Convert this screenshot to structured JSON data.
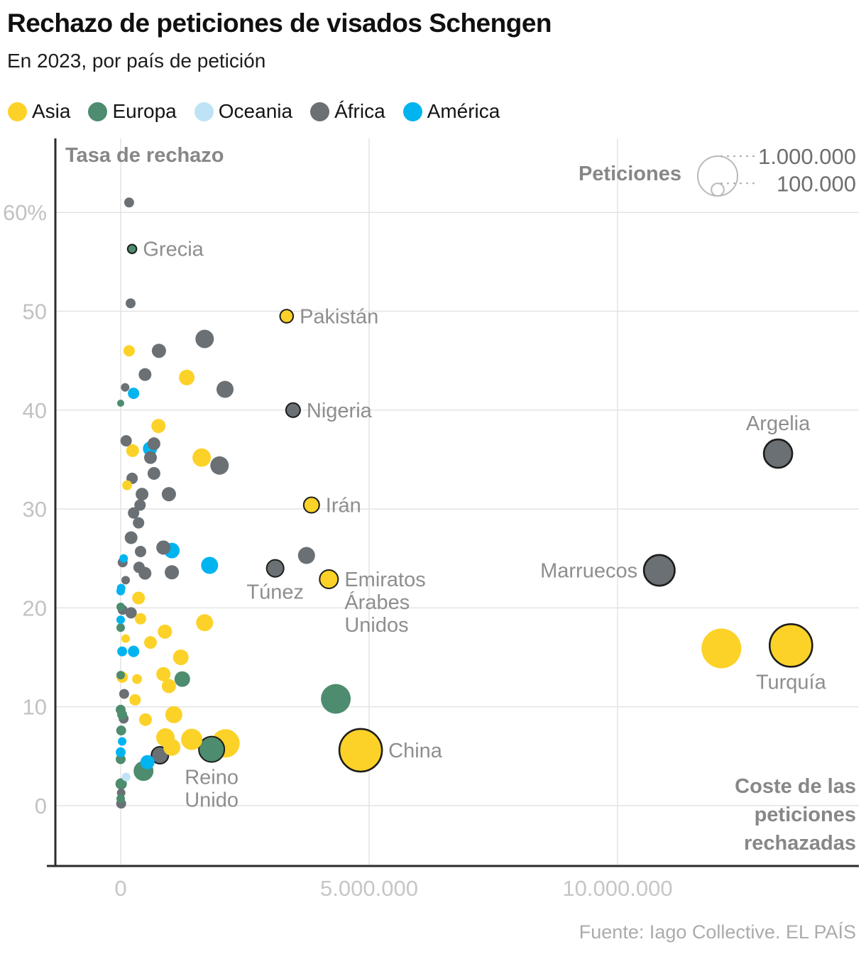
{
  "header": {
    "title": "Rechazo de peticiones de visados Schengen",
    "subtitle": "En 2023, por país de petición"
  },
  "legend": {
    "items": [
      {
        "label": "Asia",
        "color": "#FCD228"
      },
      {
        "label": "Europa",
        "color": "#4D8C6E"
      },
      {
        "label": "Oceania",
        "color": "#BEE3F6"
      },
      {
        "label": "África",
        "color": "#6A7074"
      },
      {
        "label": "América",
        "color": "#00B4F0"
      }
    ]
  },
  "footer": {
    "source": "Fuente: Iago Collective. EL PAÍS"
  },
  "chart_data": {
    "type": "scatter",
    "title": "Rechazo de peticiones de visados Schengen",
    "subtitle": "En 2023, por país de petición",
    "y_axis_title": "Tasa de rechazo",
    "x_axis_title_lines": [
      "Coste de las",
      "peticiones",
      "rechazadas"
    ],
    "x_axis_title": "Coste de las peticiones rechazadas",
    "xlim": [
      -1300000,
      14860000
    ],
    "ylim": [
      -6,
      67
    ],
    "grid": true,
    "x_ticks": [
      {
        "value": 0,
        "label": "0"
      },
      {
        "value": 5000000,
        "label": "5.000.000"
      },
      {
        "value": 10000000,
        "label": "10.000.000"
      }
    ],
    "y_ticks": [
      {
        "value": 0,
        "label": "0"
      },
      {
        "value": 10,
        "label": "10"
      },
      {
        "value": 20,
        "label": "20"
      },
      {
        "value": 30,
        "label": "30"
      },
      {
        "value": 40,
        "label": "40"
      },
      {
        "value": 50,
        "label": "50"
      },
      {
        "value": 60,
        "label": "60%"
      }
    ],
    "size_legend": {
      "title": "Peticiones",
      "entries": [
        {
          "label": "1.000.000",
          "value": 1000000
        },
        {
          "label": "100.000",
          "value": 100000
        }
      ]
    },
    "continents": {
      "Asia": "#FCD228",
      "Europa": "#4D8C6E",
      "Oceania": "#BEE3F6",
      "África": "#6A7074",
      "América": "#00B4F0"
    },
    "points_columns": [
      "label",
      "continent",
      "cost_eur",
      "rate_pct",
      "peticiones",
      "outlined",
      "label_side",
      "label_lines"
    ],
    "points": [
      [
        "Grecia",
        "Europa",
        230000,
        56.3,
        50000,
        true,
        "right",
        null
      ],
      [
        "Pakistán",
        "Asia",
        3340000,
        49.5,
        110000,
        true,
        "right",
        null
      ],
      [
        "Nigeria",
        "África",
        3470000,
        40.0,
        128000,
        true,
        "right",
        null
      ],
      [
        "Irán",
        "Asia",
        3840000,
        30.4,
        154000,
        true,
        "right",
        null
      ],
      [
        "Túnez",
        "África",
        3110000,
        24.0,
        184000,
        true,
        "below",
        null
      ],
      [
        "Emiratos Árabes Unidos",
        "Asia",
        4190000,
        22.9,
        216000,
        true,
        "right",
        [
          "Emiratos",
          "Árabes",
          "Unidos"
        ]
      ],
      [
        "Argelia",
        "África",
        13230000,
        35.6,
        510000,
        true,
        "above",
        null
      ],
      [
        "Marruecos",
        "África",
        10840000,
        23.8,
        600000,
        true,
        "left",
        null
      ],
      [
        "Turquía",
        "Asia",
        13490000,
        16.2,
        1150000,
        true,
        "below",
        null
      ],
      [
        "China",
        "Asia",
        4830000,
        5.6,
        1150000,
        true,
        "right",
        null
      ],
      [
        "Reino Unido",
        "Europa",
        1830000,
        5.7,
        413000,
        true,
        "below",
        [
          "Reino",
          "Unido"
        ]
      ],
      [
        null,
        "África",
        170000,
        61.0,
        62000,
        false,
        null,
        null
      ],
      [
        null,
        "África",
        200000,
        50.8,
        62000,
        false,
        null,
        null
      ],
      [
        null,
        "África",
        770000,
        46.0,
        128000,
        false,
        null,
        null
      ],
      [
        null,
        "África",
        1690000,
        47.2,
        215000,
        false,
        null,
        null
      ],
      [
        null,
        "África",
        490000,
        43.6,
        103000,
        false,
        null,
        null
      ],
      [
        null,
        "África",
        2100000,
        42.1,
        184000,
        false,
        null,
        null
      ],
      [
        null,
        "África",
        90000,
        42.3,
        46000,
        false,
        null,
        null
      ],
      [
        null,
        "África",
        110000,
        36.9,
        82000,
        false,
        null,
        null
      ],
      [
        null,
        "África",
        670000,
        36.6,
        103000,
        false,
        null,
        null
      ],
      [
        null,
        "África",
        600000,
        35.2,
        103000,
        false,
        null,
        null
      ],
      [
        null,
        "África",
        1990000,
        34.4,
        215000,
        false,
        null,
        null
      ],
      [
        null,
        "África",
        670000,
        33.6,
        103000,
        false,
        null,
        null
      ],
      [
        null,
        "África",
        230000,
        33.1,
        82000,
        false,
        null,
        null
      ],
      [
        null,
        "África",
        430000,
        31.5,
        103000,
        false,
        null,
        null
      ],
      [
        null,
        "África",
        970000,
        31.5,
        128000,
        false,
        null,
        null
      ],
      [
        null,
        "África",
        390000,
        30.4,
        82000,
        false,
        null,
        null
      ],
      [
        null,
        "África",
        260000,
        29.6,
        82000,
        false,
        null,
        null
      ],
      [
        null,
        "África",
        360000,
        28.6,
        82000,
        false,
        null,
        null
      ],
      [
        null,
        "África",
        210000,
        27.1,
        103000,
        false,
        null,
        null
      ],
      [
        null,
        "África",
        860000,
        26.1,
        128000,
        false,
        null,
        null
      ],
      [
        null,
        "África",
        400000,
        25.7,
        82000,
        false,
        null,
        null
      ],
      [
        null,
        "África",
        40000,
        24.6,
        62000,
        false,
        null,
        null
      ],
      [
        null,
        "África",
        370000,
        24.1,
        82000,
        false,
        null,
        null
      ],
      [
        null,
        "África",
        490000,
        23.5,
        103000,
        false,
        null,
        null
      ],
      [
        null,
        "África",
        1030000,
        23.6,
        128000,
        false,
        null,
        null
      ],
      [
        null,
        "África",
        3740000,
        25.3,
        184000,
        false,
        null,
        null
      ],
      [
        null,
        "África",
        100000,
        22.8,
        46000,
        false,
        null,
        null
      ],
      [
        null,
        "África",
        40000,
        19.8,
        62000,
        false,
        null,
        null
      ],
      [
        null,
        "África",
        210000,
        19.5,
        82000,
        false,
        null,
        null
      ],
      [
        null,
        "África",
        70000,
        11.3,
        62000,
        false,
        null,
        null
      ],
      [
        null,
        "África",
        60000,
        8.8,
        62000,
        false,
        null,
        null
      ],
      [
        null,
        "África",
        790000,
        5.1,
        184000,
        true,
        null,
        null
      ],
      [
        null,
        "África",
        10000,
        1.3,
        46000,
        false,
        null,
        null
      ],
      [
        null,
        "África",
        10000,
        0.2,
        62000,
        false,
        null,
        null
      ],
      [
        null,
        "Asia",
        170000,
        46.0,
        82000,
        false,
        null,
        null
      ],
      [
        null,
        "Asia",
        1330000,
        43.3,
        154000,
        false,
        null,
        null
      ],
      [
        null,
        "Asia",
        760000,
        38.4,
        128000,
        false,
        null,
        null
      ],
      [
        null,
        "Asia",
        240000,
        35.9,
        103000,
        false,
        null,
        null
      ],
      [
        null,
        "Asia",
        1630000,
        35.2,
        215000,
        false,
        null,
        null
      ],
      [
        null,
        "Asia",
        130000,
        32.4,
        62000,
        false,
        null,
        null
      ],
      [
        null,
        "Asia",
        360000,
        21.0,
        103000,
        false,
        null,
        null
      ],
      [
        null,
        "Asia",
        400000,
        18.9,
        82000,
        false,
        null,
        null
      ],
      [
        null,
        "Asia",
        1690000,
        18.5,
        184000,
        false,
        null,
        null
      ],
      [
        null,
        "Asia",
        890000,
        17.6,
        128000,
        false,
        null,
        null
      ],
      [
        null,
        "Asia",
        600000,
        16.5,
        103000,
        false,
        null,
        null
      ],
      [
        null,
        "Asia",
        100000,
        16.9,
        46000,
        false,
        null,
        null
      ],
      [
        null,
        "Asia",
        1210000,
        15.0,
        154000,
        false,
        null,
        null
      ],
      [
        null,
        "Asia",
        860000,
        13.3,
        128000,
        false,
        null,
        null
      ],
      [
        null,
        "Asia",
        970000,
        12.1,
        128000,
        false,
        null,
        null
      ],
      [
        null,
        "Asia",
        330000,
        12.8,
        62000,
        false,
        null,
        null
      ],
      [
        null,
        "Asia",
        30000,
        13.0,
        82000,
        false,
        null,
        null
      ],
      [
        null,
        "Asia",
        290000,
        10.7,
        82000,
        false,
        null,
        null
      ],
      [
        null,
        "Asia",
        500000,
        8.7,
        103000,
        false,
        null,
        null
      ],
      [
        null,
        "Asia",
        1070000,
        9.2,
        184000,
        false,
        null,
        null
      ],
      [
        null,
        "Asia",
        900000,
        6.9,
        215000,
        false,
        null,
        null
      ],
      [
        null,
        "Asia",
        1030000,
        5.9,
        184000,
        false,
        null,
        null
      ],
      [
        null,
        "Asia",
        1430000,
        6.7,
        287000,
        false,
        null,
        null
      ],
      [
        null,
        "Asia",
        2110000,
        6.3,
        510000,
        false,
        null,
        null
      ],
      [
        null,
        "Asia",
        12090000,
        15.9,
        1000000,
        false,
        null,
        null
      ],
      [
        null,
        "Europa",
        0,
        40.7,
        32000,
        false,
        null,
        null
      ],
      [
        null,
        "Europa",
        0,
        20.1,
        46000,
        false,
        null,
        null
      ],
      [
        null,
        "Europa",
        0,
        18.0,
        46000,
        false,
        null,
        null
      ],
      [
        null,
        "Europa",
        1240000,
        12.8,
        154000,
        false,
        null,
        null
      ],
      [
        null,
        "Europa",
        0,
        13.2,
        46000,
        false,
        null,
        null
      ],
      [
        null,
        "Europa",
        0,
        9.7,
        62000,
        false,
        null,
        null
      ],
      [
        null,
        "Europa",
        30000,
        9.2,
        62000,
        false,
        null,
        null
      ],
      [
        null,
        "Europa",
        10000,
        7.6,
        62000,
        false,
        null,
        null
      ],
      [
        null,
        "Europa",
        0,
        4.7,
        62000,
        false,
        null,
        null
      ],
      [
        null,
        "Europa",
        460000,
        3.5,
        250000,
        false,
        null,
        null
      ],
      [
        null,
        "Europa",
        10000,
        2.2,
        82000,
        false,
        null,
        null
      ],
      [
        null,
        "Europa",
        0,
        0.7,
        46000,
        false,
        null,
        null
      ],
      [
        null,
        "Europa",
        4330000,
        10.8,
        560000,
        false,
        null,
        null
      ],
      [
        null,
        "América",
        260000,
        41.7,
        82000,
        false,
        null,
        null
      ],
      [
        null,
        "América",
        590000,
        36.1,
        128000,
        false,
        null,
        null
      ],
      [
        null,
        "América",
        1030000,
        25.8,
        154000,
        false,
        null,
        null
      ],
      [
        null,
        "América",
        60000,
        25.0,
        46000,
        false,
        null,
        null
      ],
      [
        null,
        "América",
        1790000,
        24.3,
        184000,
        false,
        null,
        null
      ],
      [
        null,
        "América",
        10000,
        22.0,
        46000,
        false,
        null,
        null
      ],
      [
        null,
        "América",
        0,
        21.7,
        46000,
        false,
        null,
        null
      ],
      [
        null,
        "América",
        0,
        18.8,
        46000,
        false,
        null,
        null
      ],
      [
        null,
        "América",
        30000,
        15.6,
        62000,
        false,
        null,
        null
      ],
      [
        null,
        "América",
        260000,
        15.6,
        82000,
        false,
        null,
        null
      ],
      [
        null,
        "América",
        30000,
        6.5,
        46000,
        false,
        null,
        null
      ],
      [
        null,
        "América",
        540000,
        4.4,
        128000,
        false,
        null,
        null
      ],
      [
        null,
        "América",
        0,
        5.4,
        62000,
        false,
        null,
        null
      ],
      [
        null,
        "Oceania",
        110000,
        2.9,
        46000,
        false,
        null,
        null
      ]
    ]
  }
}
